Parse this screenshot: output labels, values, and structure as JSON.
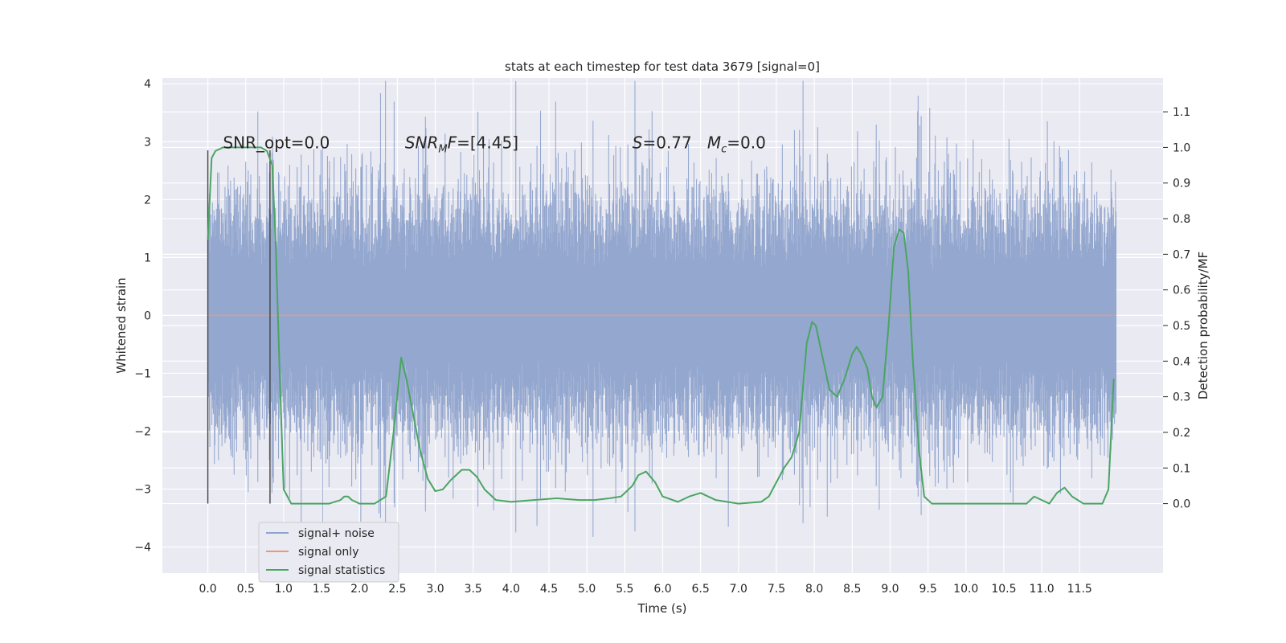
{
  "chart_data": {
    "type": "line",
    "title": "stats at each timestep for test data 3679 [signal=0]",
    "xlabel": "Time (s)",
    "ylabel": "Whitened strain",
    "y2label": "Detection probability/MF",
    "xlim": [
      -0.6,
      12.6
    ],
    "ylim": [
      -4.45,
      4.1
    ],
    "y2lim": [
      -0.195,
      1.195
    ],
    "xticks": [
      0.0,
      0.5,
      1.0,
      1.5,
      2.0,
      2.5,
      3.0,
      3.5,
      4.0,
      4.5,
      5.0,
      5.5,
      6.0,
      6.5,
      7.0,
      7.5,
      8.0,
      8.5,
      9.0,
      9.5,
      10.0,
      10.5,
      11.0,
      11.5
    ],
    "xtick_labels": [
      "0.0",
      "0.5",
      "1.0",
      "1.5",
      "2.0",
      "2.5",
      "3.0",
      "3.5",
      "4.0",
      "4.5",
      "5.0",
      "5.5",
      "6.0",
      "6.5",
      "7.0",
      "7.5",
      "8.0",
      "8.5",
      "9.0",
      "9.5",
      "10.0",
      "10.5",
      "11.0",
      "11.5"
    ],
    "yticks": [
      -4,
      -3,
      -2,
      -1,
      0,
      1,
      2,
      3,
      4
    ],
    "ytick_labels": [
      "−4",
      "−3",
      "−2",
      "−1",
      "0",
      "1",
      "2",
      "3",
      "4"
    ],
    "y2ticks": [
      0.0,
      0.1,
      0.2,
      0.3,
      0.4,
      0.5,
      0.6,
      0.7,
      0.8,
      0.9,
      1.0,
      1.1
    ],
    "y2tick_labels": [
      "0.0",
      "0.1",
      "0.2",
      "0.3",
      "0.4",
      "0.5",
      "0.6",
      "0.7",
      "0.8",
      "0.9",
      "1.0",
      "1.1"
    ],
    "grid": true,
    "legend_position": "lower-left",
    "annotations": [
      {
        "text": "SNR_opt=0.0",
        "x": 0.2,
        "y": 3.0
      },
      {
        "text": "SNR_MF=[4.45]",
        "x": 2.6,
        "y": 3.0
      },
      {
        "text": "S=0.77   M_c=0.0",
        "x": 5.6,
        "y": 3.0
      }
    ],
    "vlines": [
      {
        "x": 0.0,
        "ymin": -3.25,
        "ymax": 2.85
      },
      {
        "x": 0.82,
        "ymin": -3.25,
        "ymax": 2.85
      }
    ],
    "series": [
      {
        "name": "signal+ noise",
        "axis": "left",
        "color": "#8fa3cc",
        "x_range": [
          0.0,
          11.98
        ],
        "samples": 1800,
        "typical_band": [
          -1.7,
          1.7
        ],
        "max_abs": 4.05
      },
      {
        "name": "signal only",
        "axis": "left",
        "color": "#e59a7e",
        "x": [
          0.0,
          11.98
        ],
        "values": [
          0.0,
          0.0
        ]
      },
      {
        "name": "signal statistics",
        "axis": "right",
        "color": "#4aa562",
        "x": [
          0.0,
          0.05,
          0.1,
          0.2,
          0.3,
          0.5,
          0.7,
          0.78,
          0.85,
          0.9,
          0.95,
          1.0,
          1.1,
          1.2,
          1.4,
          1.6,
          1.75,
          1.8,
          1.85,
          1.9,
          2.0,
          2.2,
          2.35,
          2.45,
          2.55,
          2.62,
          2.7,
          2.8,
          2.9,
          3.0,
          3.1,
          3.2,
          3.35,
          3.45,
          3.55,
          3.65,
          3.8,
          4.0,
          4.3,
          4.6,
          4.9,
          5.1,
          5.3,
          5.45,
          5.6,
          5.68,
          5.78,
          5.9,
          6.0,
          6.2,
          6.35,
          6.5,
          6.7,
          7.0,
          7.3,
          7.4,
          7.5,
          7.6,
          7.7,
          7.8,
          7.9,
          7.97,
          8.02,
          8.1,
          8.2,
          8.3,
          8.4,
          8.5,
          8.56,
          8.62,
          8.7,
          8.76,
          8.82,
          8.9,
          8.98,
          9.05,
          9.12,
          9.18,
          9.24,
          9.3,
          9.38,
          9.45,
          9.55,
          9.7,
          10.0,
          10.3,
          10.6,
          10.8,
          10.9,
          11.0,
          11.1,
          11.2,
          11.3,
          11.4,
          11.55,
          11.7,
          11.8,
          11.88,
          11.95
        ],
        "values": [
          0.74,
          0.97,
          0.99,
          1.0,
          1.0,
          1.0,
          1.0,
          0.99,
          0.95,
          0.7,
          0.35,
          0.04,
          0.0,
          0.0,
          0.0,
          0.0,
          0.01,
          0.02,
          0.02,
          0.01,
          0.0,
          0.0,
          0.02,
          0.2,
          0.41,
          0.35,
          0.26,
          0.15,
          0.07,
          0.035,
          0.04,
          0.065,
          0.095,
          0.095,
          0.075,
          0.04,
          0.01,
          0.005,
          0.01,
          0.015,
          0.01,
          0.01,
          0.015,
          0.02,
          0.05,
          0.08,
          0.09,
          0.06,
          0.02,
          0.005,
          0.02,
          0.03,
          0.01,
          0.0,
          0.005,
          0.02,
          0.06,
          0.1,
          0.13,
          0.2,
          0.45,
          0.51,
          0.5,
          0.42,
          0.32,
          0.3,
          0.35,
          0.42,
          0.44,
          0.42,
          0.38,
          0.3,
          0.27,
          0.3,
          0.5,
          0.72,
          0.77,
          0.76,
          0.65,
          0.4,
          0.15,
          0.02,
          0.0,
          0.0,
          0.0,
          0.0,
          0.0,
          0.0,
          0.02,
          0.01,
          0.0,
          0.03,
          0.045,
          0.02,
          0.0,
          0.0,
          0.0,
          0.04,
          0.35
        ]
      }
    ]
  }
}
